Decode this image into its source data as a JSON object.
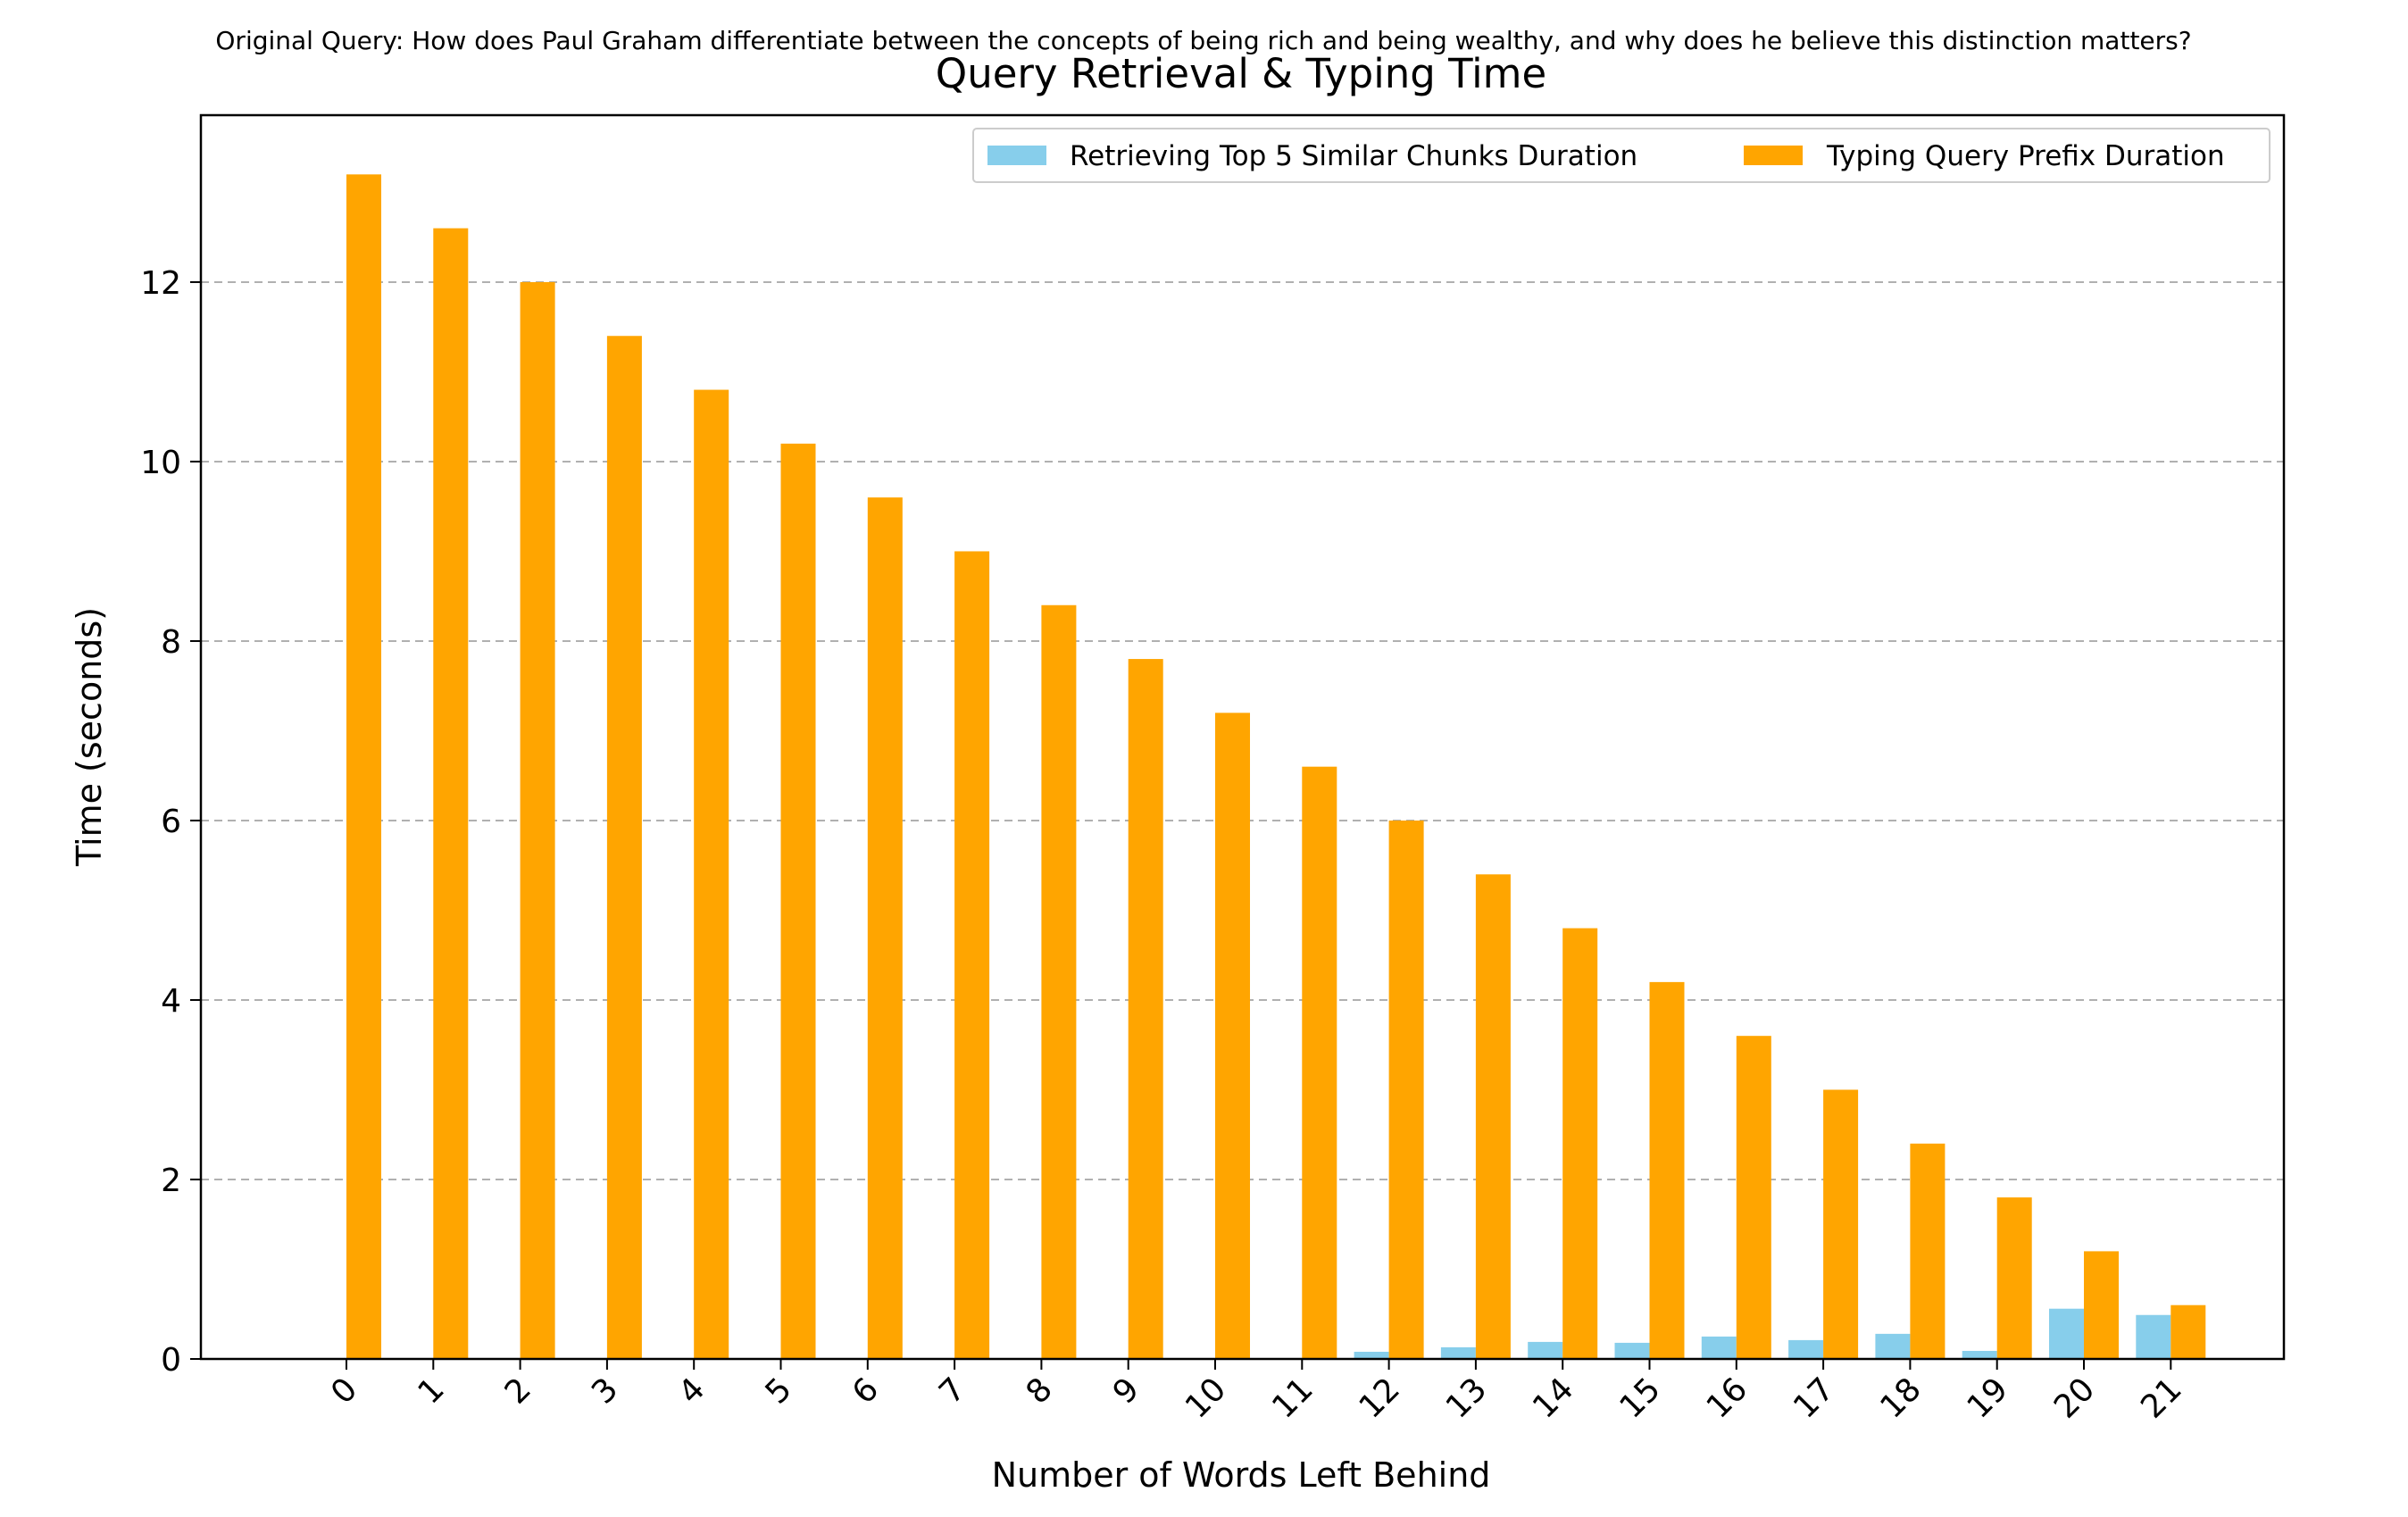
{
  "suptitle": "Original Query: How does Paul Graham differentiate between the concepts of being rich and being wealthy, and why does he believe this distinction matters?",
  "chart_data": {
    "type": "bar",
    "title": "Query Retrieval & Typing Time",
    "xlabel": "Number of Words Left Behind",
    "ylabel": "Time (seconds)",
    "ylim": [
      0,
      13.86
    ],
    "yticks": [
      0,
      2,
      4,
      6,
      8,
      10,
      12
    ],
    "grid": "y dashed",
    "legend_position": "top-right",
    "categories": [
      "0",
      "1",
      "2",
      "3",
      "4",
      "5",
      "6",
      "7",
      "8",
      "9",
      "10",
      "11",
      "12",
      "13",
      "14",
      "15",
      "16",
      "17",
      "18",
      "19",
      "20",
      "21"
    ],
    "series": [
      {
        "name": "Retrieving Top 5 Similar Chunks Duration",
        "color": "#87CEEB",
        "values": [
          0,
          0,
          0,
          0,
          0,
          0,
          0,
          0,
          0,
          0,
          0,
          0,
          0.08,
          0.13,
          0.19,
          0.18,
          0.25,
          0.21,
          0.28,
          0.09,
          0.56,
          0.49
        ]
      },
      {
        "name": "Typing Query Prefix Duration",
        "color": "#FFA500",
        "values": [
          13.2,
          12.6,
          12.0,
          11.4,
          10.8,
          10.2,
          9.6,
          9.0,
          8.4,
          7.8,
          7.2,
          6.6,
          6.0,
          5.4,
          4.8,
          4.2,
          3.6,
          3.0,
          2.4,
          1.8,
          1.2,
          0.6
        ]
      }
    ]
  }
}
